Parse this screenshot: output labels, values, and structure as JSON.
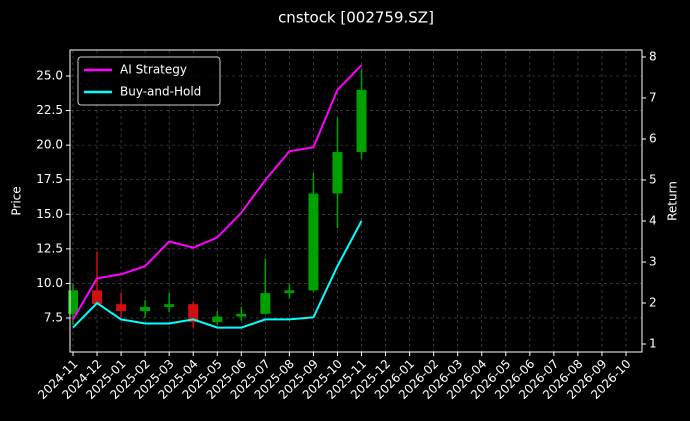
{
  "chart_data": {
    "type": "candlestick",
    "title": "cnstock [002759.SZ]",
    "ylabel": "Price",
    "y2label": "Return",
    "x": [
      "2024-11",
      "2024-12",
      "2025-01",
      "2025-02",
      "2025-03",
      "2025-04",
      "2025-05",
      "2025-06",
      "2025-07",
      "2025-08",
      "2025-09",
      "2025-10",
      "2025-11"
    ],
    "open": [
      7.8,
      9.5,
      8.5,
      8.0,
      8.3,
      8.5,
      7.2,
      7.6,
      7.8,
      9.3,
      9.5,
      16.5,
      19.5
    ],
    "high": [
      10.0,
      12.3,
      9.3,
      8.8,
      9.3,
      8.7,
      8.0,
      8.3,
      11.8,
      10.0,
      18.0,
      22.0,
      25.5
    ],
    "low": [
      7.0,
      8.5,
      7.5,
      7.5,
      7.9,
      6.8,
      7.0,
      7.3,
      7.8,
      8.9,
      9.4,
      14.0,
      19.0
    ],
    "close": [
      9.5,
      8.5,
      8.0,
      8.3,
      8.5,
      7.2,
      7.6,
      7.8,
      9.3,
      9.5,
      16.5,
      19.5,
      24.0
    ],
    "up_color": "#00a000",
    "down_color": "#d01010",
    "series": [
      {
        "name": "AI Strategy",
        "color": "#ff00ff",
        "axis": "y2",
        "values": [
          1.6,
          2.6,
          2.7,
          2.9,
          3.5,
          3.35,
          3.6,
          4.2,
          5.0,
          5.7,
          5.8,
          7.2,
          7.8
        ]
      },
      {
        "name": "Buy-and-Hold",
        "color": "#00ffff",
        "axis": "y2",
        "values": [
          1.4,
          2.0,
          1.6,
          1.5,
          1.5,
          1.6,
          1.4,
          1.4,
          1.6,
          1.6,
          1.65,
          2.9,
          4.0
        ]
      }
    ],
    "xlim": [
      "2024-11",
      "2026-10"
    ],
    "xticks": [
      "2024-11",
      "2024-12",
      "2025-01",
      "2025-02",
      "2025-03",
      "2025-04",
      "2025-05",
      "2025-06",
      "2025-07",
      "2025-08",
      "2025-09",
      "2025-10",
      "2025-11",
      "2025-12",
      "2026-01",
      "2026-02",
      "2026-03",
      "2026-04",
      "2026-05",
      "2026-06",
      "2026-07",
      "2026-08",
      "2026-09",
      "2026-10"
    ],
    "ylim": [
      5.04,
      26.88
    ],
    "yticks": [
      7.5,
      {
        "value": 10,
        "label": "10.0"
      },
      12.5,
      {
        "value": 15,
        "label": "15.0"
      },
      17.5,
      {
        "value": 20,
        "label": "20.0"
      },
      22.5,
      {
        "value": 25,
        "label": "25.0"
      }
    ],
    "y2lim": [
      0.805,
      8.17
    ],
    "y2ticks": [
      1,
      2,
      3,
      4,
      5,
      6,
      7,
      8
    ],
    "grid": true,
    "legend": "upper-left"
  }
}
